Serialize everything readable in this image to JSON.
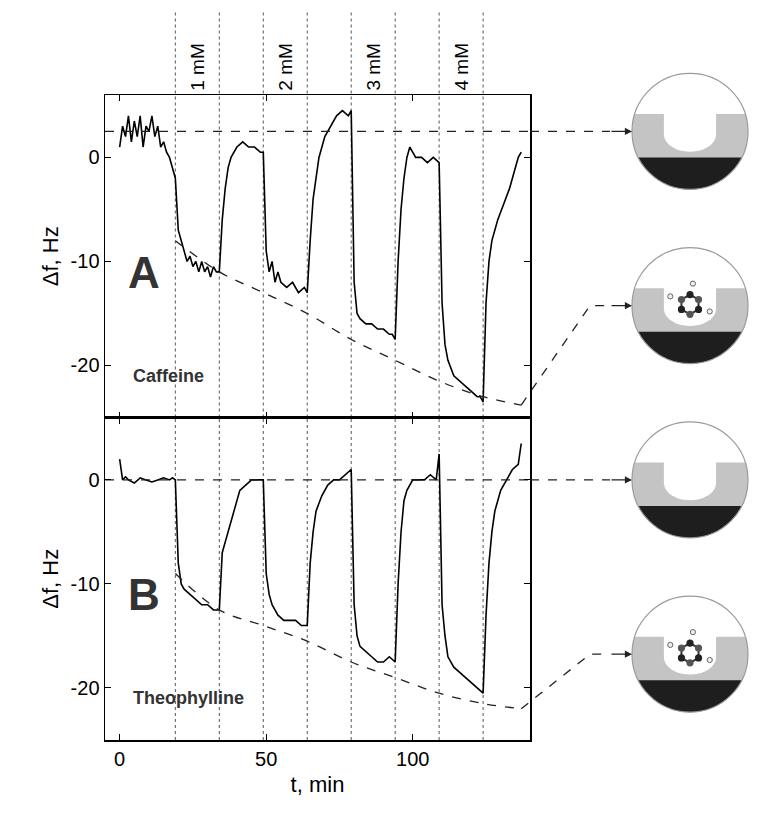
{
  "chart_data": [
    {
      "type": "line",
      "panel_label": "A",
      "label": "Caffeine",
      "color": "#000000",
      "line_style": "solid",
      "concentration_labels": [
        "1 mM",
        "2 mM",
        "3 mM",
        "4 mM"
      ],
      "vlines": [
        19,
        34,
        49,
        64,
        79,
        94,
        109,
        124
      ],
      "x": [
        0,
        1,
        2,
        3,
        4,
        5,
        6,
        7,
        8,
        9,
        10,
        11,
        12,
        13,
        14,
        15,
        16,
        17,
        18,
        19,
        20,
        21,
        22,
        23,
        24,
        25,
        26,
        27,
        28,
        29,
        30,
        31,
        32,
        33,
        34,
        35,
        36,
        37,
        38,
        40,
        42,
        44,
        46,
        48,
        49,
        50,
        51,
        52,
        53,
        54,
        55,
        57,
        59,
        61,
        63,
        64,
        65,
        66,
        67,
        68,
        70,
        72,
        74,
        76,
        78,
        79,
        80,
        81,
        82,
        84,
        86,
        88,
        90,
        92,
        93,
        94,
        95,
        96,
        97,
        98,
        99,
        101,
        103,
        105,
        107,
        109,
        110,
        111,
        112,
        114,
        116,
        118,
        120,
        122,
        123,
        124,
        125,
        126,
        127,
        129,
        131,
        133,
        135,
        136,
        137
      ],
      "values": [
        1,
        3,
        2,
        4,
        1.5,
        3.5,
        2,
        4,
        1,
        3,
        2.5,
        4,
        2,
        3,
        1,
        1.5,
        0.5,
        0,
        -1,
        -2,
        -7,
        -8,
        -9,
        -10,
        -9.5,
        -10.5,
        -10,
        -11,
        -10,
        -11,
        -10.5,
        -11.5,
        -10.5,
        -11,
        -11,
        -6,
        -3,
        -1,
        0,
        1,
        1.5,
        1,
        1,
        0.5,
        0.5,
        -9,
        -11,
        -10,
        -12,
        -11,
        -12,
        -12.5,
        -12,
        -13,
        -12.5,
        -13,
        -8,
        -4,
        -2,
        0,
        2,
        3,
        4,
        4.5,
        4,
        4.5,
        -12,
        -15,
        -15.5,
        -16,
        -16,
        -16.5,
        -16.5,
        -17,
        -17,
        -17.5,
        -10,
        -5,
        -2,
        0,
        1,
        0,
        0,
        -0.5,
        0,
        -0.5,
        -14,
        -18,
        -19.5,
        -21,
        -21.5,
        -22,
        -22.5,
        -23,
        -23,
        -23.5,
        -14,
        -10,
        -8,
        -6,
        -4.5,
        -3,
        -1,
        0,
        0.5
      ],
      "baseline": 2.5,
      "envelope": {
        "x": [
          19,
          34,
          49,
          64,
          79,
          94,
          109,
          124,
          137
        ],
        "values": [
          -8,
          -11,
          -13,
          -15,
          -17.5,
          -19.5,
          -21.5,
          -23,
          -23.8
        ]
      },
      "xlim": [
        -5,
        140
      ],
      "xticks": [
        0,
        50,
        100
      ],
      "ylim": [
        -25,
        6
      ],
      "yticks": [
        -20,
        -10,
        0
      ],
      "y_label": "Δf, Hz",
      "tick_labels": "y",
      "grid": false
    },
    {
      "type": "line",
      "panel_label": "B",
      "label": "Theophylline",
      "color": "#000000",
      "line_style": "solid",
      "vlines": [
        19,
        34,
        49,
        64,
        79,
        94,
        109,
        124
      ],
      "x": [
        0,
        1,
        2,
        3,
        5,
        7,
        9,
        11,
        13,
        15,
        17,
        18,
        19,
        20,
        21,
        22,
        24,
        26,
        28,
        30,
        32,
        34,
        35,
        36,
        37,
        39,
        41,
        43,
        45,
        47,
        49,
        50,
        51,
        52,
        54,
        56,
        58,
        60,
        62,
        64,
        65,
        66,
        67,
        69,
        71,
        73,
        75,
        77,
        79,
        80,
        81,
        82,
        84,
        86,
        88,
        90,
        92,
        94,
        95,
        96,
        97,
        98,
        100,
        102,
        104,
        106,
        108,
        109,
        110,
        111,
        112,
        114,
        116,
        118,
        120,
        122,
        124,
        125,
        126,
        127,
        128,
        130,
        132,
        134,
        136,
        137
      ],
      "values": [
        2,
        0,
        0.3,
        0,
        -0.3,
        0.2,
        0,
        -0.2,
        0,
        0.2,
        0,
        0.2,
        0,
        -8,
        -10,
        -10.5,
        -11,
        -11.5,
        -12,
        -12,
        -12.5,
        -12.5,
        -7,
        -6,
        -5,
        -3,
        -1,
        -0.5,
        0,
        0,
        0,
        -9,
        -11,
        -12,
        -13,
        -13.5,
        -13.5,
        -13.5,
        -14,
        -14,
        -8,
        -5,
        -3,
        -1.5,
        -0.5,
        0,
        0,
        0.5,
        1,
        -12,
        -15,
        -16,
        -16.5,
        -17,
        -17.5,
        -17.5,
        -17,
        -17.5,
        -10,
        -5,
        -2,
        -1,
        0,
        0,
        0,
        0.5,
        0,
        2.5,
        -12,
        -15,
        -17,
        -18,
        -18.5,
        -19,
        -19.5,
        -20,
        -20.5,
        -13,
        -8,
        -5,
        -3,
        -1,
        0,
        1,
        1.5,
        3.5
      ],
      "baseline": 0,
      "envelope": {
        "x": [
          19,
          34,
          49,
          64,
          79,
          94,
          109,
          124,
          137
        ],
        "values": [
          -9,
          -12.5,
          -14,
          -15.5,
          -17.5,
          -19,
          -20.5,
          -21.5,
          -22
        ]
      },
      "xlim": [
        -5,
        140
      ],
      "xticks": [
        0,
        50,
        100
      ],
      "ylim": [
        -25,
        6
      ],
      "yticks": [
        -20,
        -10,
        0
      ],
      "x_label": "t, min",
      "y_label": "Δf, Hz",
      "grid": false
    }
  ]
}
